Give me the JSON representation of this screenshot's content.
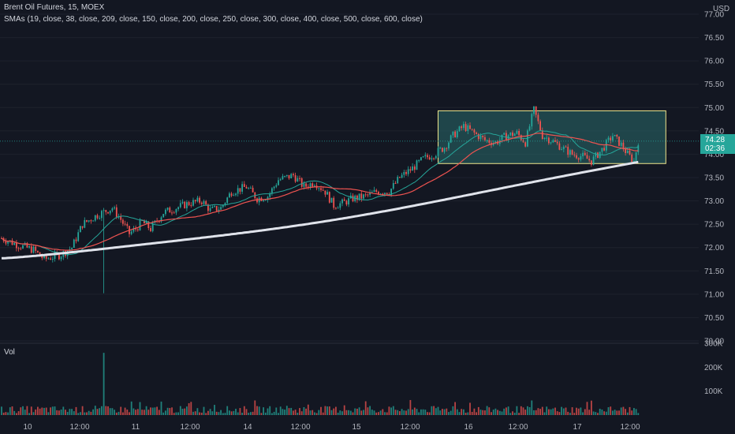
{
  "header": {
    "title": "Brent Oil Futures, 15, MOEX",
    "indicator": "SMAs (19, close, 38, close, 209, close, 150, close, 200, close, 250, close, 300, close, 400, close, 500, close, 600, close)",
    "volume_label": "Vol"
  },
  "price_axis": {
    "currency": "USD",
    "ticks": [
      "77.00",
      "76.50",
      "76.00",
      "75.50",
      "75.00",
      "74.50",
      "74.00",
      "73.50",
      "73.00",
      "72.50",
      "72.00",
      "71.50",
      "71.00",
      "70.50",
      "70.00"
    ]
  },
  "volume_axis": {
    "ticks": [
      "300K",
      "200K",
      "100K"
    ]
  },
  "time_axis": {
    "ticks": [
      "10",
      "12:00",
      "11",
      "12:00",
      "14",
      "12:00",
      "15",
      "12:00",
      "16",
      "12:00",
      "17",
      "12:00"
    ]
  },
  "last_price": {
    "value": "74.28",
    "countdown": "02:36"
  },
  "colors": {
    "background": "#131722",
    "up": "#26a69a",
    "down": "#ef5350",
    "sma_fast": "#26a69a",
    "sma_mid": "#ef5350",
    "sma_slow": "#e0e3eb",
    "box_border": "#f0e68c",
    "box_fill": "#2a6b6b"
  },
  "chart_data": {
    "type": "candlestick",
    "timeframe": "15",
    "y_range": [
      70.0,
      77.0
    ],
    "volume_range": [
      0,
      300000
    ],
    "price_path": [
      [
        0,
        72.2
      ],
      [
        8,
        72.05
      ],
      [
        15,
        71.95
      ],
      [
        20,
        71.75
      ],
      [
        28,
        71.85
      ],
      [
        33,
        72.0
      ],
      [
        38,
        72.5
      ],
      [
        45,
        72.7
      ],
      [
        52,
        72.85
      ],
      [
        56,
        72.6
      ],
      [
        60,
        72.3
      ],
      [
        63,
        72.4
      ],
      [
        66,
        72.55
      ],
      [
        70,
        72.4
      ],
      [
        76,
        72.75
      ],
      [
        82,
        72.85
      ],
      [
        88,
        72.95
      ],
      [
        94,
        73.0
      ],
      [
        98,
        72.8
      ],
      [
        103,
        72.85
      ],
      [
        108,
        73.2
      ],
      [
        115,
        73.3
      ],
      [
        120,
        73.05
      ],
      [
        125,
        73.1
      ],
      [
        130,
        73.45
      ],
      [
        137,
        73.55
      ],
      [
        142,
        73.3
      ],
      [
        147,
        73.4
      ],
      [
        152,
        73.2
      ],
      [
        156,
        72.9
      ],
      [
        160,
        72.95
      ],
      [
        165,
        73.05
      ],
      [
        171,
        73.1
      ],
      [
        176,
        73.2
      ],
      [
        182,
        73.2
      ],
      [
        187,
        73.5
      ],
      [
        193,
        73.7
      ],
      [
        198,
        73.9
      ],
      [
        203,
        74.0
      ],
      [
        208,
        74.15
      ],
      [
        212,
        74.4
      ],
      [
        217,
        74.6
      ],
      [
        222,
        74.45
      ],
      [
        227,
        74.3
      ],
      [
        232,
        74.25
      ],
      [
        237,
        74.4
      ],
      [
        242,
        74.45
      ],
      [
        246,
        74.25
      ],
      [
        250,
        74.95
      ],
      [
        254,
        74.4
      ],
      [
        258,
        74.3
      ],
      [
        263,
        74.15
      ],
      [
        268,
        74.0
      ],
      [
        273,
        73.95
      ],
      [
        277,
        73.85
      ],
      [
        282,
        74.1
      ],
      [
        287,
        74.4
      ],
      [
        291,
        74.2
      ],
      [
        294,
        74.0
      ],
      [
        297,
        73.85
      ],
      [
        299,
        74.28
      ]
    ],
    "volume_spike": {
      "bar_index": 48,
      "value": 260000
    },
    "sma_lines": [
      {
        "period": 19
      },
      {
        "period": 38
      },
      {
        "period": 600
      }
    ],
    "annotation_box": {
      "price_top": 74.93,
      "price_bottom": 73.8,
      "start_bar": 205,
      "end_bar": 299
    }
  }
}
